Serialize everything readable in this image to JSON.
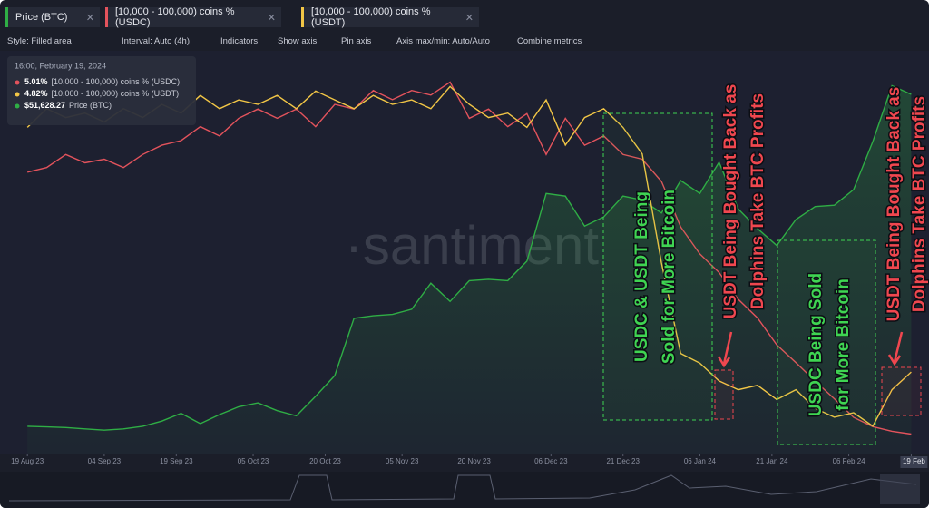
{
  "chart_data": {
    "type": "line",
    "x": [
      "2023-08-19",
      "2023-08-23",
      "2023-08-27",
      "2023-08-31",
      "2023-09-04",
      "2023-09-08",
      "2023-09-12",
      "2023-09-16",
      "2023-09-20",
      "2023-09-24",
      "2023-09-28",
      "2023-10-02",
      "2023-10-06",
      "2023-10-10",
      "2023-10-14",
      "2023-10-18",
      "2023-10-22",
      "2023-10-26",
      "2023-10-30",
      "2023-11-03",
      "2023-11-07",
      "2023-11-11",
      "2023-11-15",
      "2023-11-19",
      "2023-11-23",
      "2023-11-27",
      "2023-12-01",
      "2023-12-05",
      "2023-12-09",
      "2023-12-13",
      "2023-12-17",
      "2023-12-21",
      "2023-12-25",
      "2023-12-29",
      "2024-01-02",
      "2024-01-06",
      "2024-01-10",
      "2024-01-14",
      "2024-01-18",
      "2024-01-22",
      "2024-01-26",
      "2024-01-30",
      "2024-02-03",
      "2024-02-07",
      "2024-02-11",
      "2024-02-15",
      "2024-02-19"
    ],
    "xlim": [
      "2023-08-15",
      "2024-02-21"
    ],
    "xticks": [
      {
        "value": "2023-08-19",
        "label": "19 Aug 23"
      },
      {
        "value": "2023-09-04",
        "label": "04 Sep 23"
      },
      {
        "value": "2023-09-19",
        "label": "19 Sep 23"
      },
      {
        "value": "2023-10-05",
        "label": "05 Oct 23"
      },
      {
        "value": "2023-10-20",
        "label": "20 Oct 23"
      },
      {
        "value": "2023-11-05",
        "label": "05 Nov 23"
      },
      {
        "value": "2023-11-20",
        "label": "20 Nov 23"
      },
      {
        "value": "2023-12-06",
        "label": "06 Dec 23"
      },
      {
        "value": "2023-12-21",
        "label": "21 Dec 23"
      },
      {
        "value": "2024-01-06",
        "label": "06 Jan 24"
      },
      {
        "value": "2024-01-21",
        "label": "21 Jan 24"
      },
      {
        "value": "2024-02-06",
        "label": "06 Feb 24"
      },
      {
        "value": "2024-02-19",
        "label": "19 Feb"
      }
    ],
    "series": [
      {
        "name": "Price (BTC)",
        "color": "#2fae45",
        "style": "area",
        "ylim": [
          24000,
          54000
        ],
        "values": [
          26100,
          26050,
          26000,
          25900,
          25800,
          25900,
          26100,
          26500,
          27100,
          26300,
          27000,
          27600,
          27900,
          27300,
          26900,
          28400,
          30000,
          34400,
          34600,
          34700,
          35100,
          37100,
          35700,
          37300,
          37400,
          37300,
          38800,
          44000,
          43800,
          41500,
          42200,
          43800,
          43500,
          42500,
          45000,
          44000,
          46400,
          42800,
          41300,
          40000,
          42000,
          43000,
          43100,
          44300,
          48000,
          52300,
          51628.27
        ]
      },
      {
        "name": "[10,000 - 100,000) coins % (USDC)",
        "color": "#e3535c",
        "style": "line",
        "ylim": [
          4.8,
          9.0
        ],
        "values": [
          7.83,
          7.88,
          8.02,
          7.93,
          7.97,
          7.88,
          8.02,
          8.12,
          8.17,
          8.32,
          8.22,
          8.41,
          8.51,
          8.41,
          8.51,
          8.32,
          8.56,
          8.51,
          8.71,
          8.61,
          8.71,
          8.66,
          8.8,
          8.41,
          8.51,
          8.32,
          8.46,
          8.02,
          8.41,
          8.12,
          8.22,
          8.02,
          7.97,
          7.73,
          7.24,
          6.95,
          6.75,
          6.46,
          6.26,
          5.97,
          5.78,
          5.58,
          5.39,
          5.19,
          5.09,
          5.04,
          5.01
        ]
      },
      {
        "name": "[10,000 - 100,000) coins % (USDT)",
        "color": "#f2c646",
        "style": "line",
        "ylim": [
          3.9,
          8.3
        ],
        "values": [
          7.58,
          7.79,
          7.69,
          7.74,
          7.64,
          7.79,
          7.69,
          7.84,
          7.74,
          7.94,
          7.79,
          7.89,
          7.84,
          7.94,
          7.79,
          7.99,
          7.89,
          7.79,
          7.94,
          7.84,
          7.89,
          7.79,
          8.04,
          7.84,
          7.69,
          7.74,
          7.58,
          7.89,
          7.38,
          7.69,
          7.79,
          7.58,
          7.28,
          6.05,
          5.03,
          4.92,
          4.72,
          4.62,
          4.67,
          4.51,
          4.62,
          4.41,
          4.31,
          4.36,
          4.21,
          4.62,
          4.82
        ]
      }
    ],
    "tooltip": {
      "title": "16:00, February 19, 2024",
      "rows": [
        {
          "value": "5.01%",
          "label": "[10,000 - 100,000) coins % (USDC)"
        },
        {
          "value": "4.82%",
          "label": "[10,000 - 100,000) coins % (USDT)"
        },
        {
          "value": "$51,628.27",
          "label": "Price (BTC)"
        }
      ]
    },
    "watermark": "·santiment",
    "annotations": [
      {
        "lines": [
          "USDC & USDT Being",
          "Sold for More Bitcoin"
        ],
        "color": "#3fd452"
      },
      {
        "lines": [
          "USDT Being Bought Back as",
          "Dolphins Take BTC Profits"
        ],
        "color": "#f0474f"
      },
      {
        "lines": [
          "USDC Being Sold",
          "for More Bitcoin"
        ],
        "color": "#3fd452"
      },
      {
        "lines": [
          "USDT Being Bought Back as",
          "Dolphins Take BTC Profits"
        ],
        "color": "#f0474f"
      }
    ]
  },
  "toolbar": [
    "Style: Filled area",
    "Interval: Auto (4h)",
    "Indicators:",
    "Show axis",
    "Pin axis",
    "Axis max/min: Auto/Auto",
    "Combine metrics"
  ]
}
